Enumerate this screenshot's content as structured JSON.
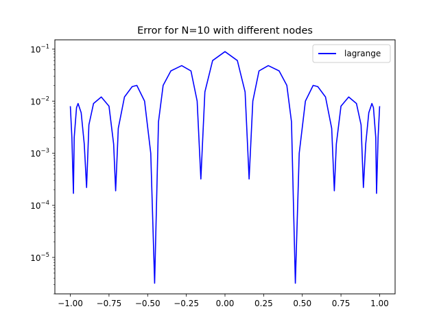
{
  "chart_data": {
    "type": "line",
    "title": "Error for N=10 with different nodes",
    "xlabel": "",
    "ylabel": "",
    "xlim": [
      -1.1,
      1.1
    ],
    "ylim": [
      2e-06,
      0.15
    ],
    "yscale": "log",
    "grid": false,
    "legend_position": "top-right",
    "x_ticks": [
      -1.0,
      -0.75,
      -0.5,
      -0.25,
      0.0,
      0.25,
      0.5,
      0.75,
      1.0
    ],
    "x_tick_labels": [
      "−1.00",
      "−0.75",
      "−0.50",
      "−0.25",
      "0.00",
      "0.25",
      "0.50",
      "0.75",
      "1.00"
    ],
    "y_ticks": [
      1e-05,
      0.0001,
      0.001,
      0.01,
      0.1
    ],
    "y_tick_labels": [
      {
        "base": "10",
        "exp": "−5"
      },
      {
        "base": "10",
        "exp": "−4"
      },
      {
        "base": "10",
        "exp": "−3"
      },
      {
        "base": "10",
        "exp": "−2"
      },
      {
        "base": "10",
        "exp": "−1"
      }
    ],
    "series": [
      {
        "name": "lagrange",
        "color": "#0000ff",
        "x": [
          -1.0,
          -0.99,
          -0.98,
          -0.975,
          -0.96,
          -0.95,
          -0.93,
          -0.91,
          -0.895,
          -0.88,
          -0.85,
          -0.8,
          -0.75,
          -0.72,
          -0.707,
          -0.69,
          -0.65,
          -0.6,
          -0.57,
          -0.52,
          -0.48,
          -0.455,
          -0.43,
          -0.4,
          -0.35,
          -0.28,
          -0.22,
          -0.18,
          -0.156,
          -0.13,
          -0.08,
          0.0,
          0.08,
          0.13,
          0.156,
          0.18,
          0.22,
          0.28,
          0.35,
          0.4,
          0.43,
          0.455,
          0.48,
          0.52,
          0.57,
          0.6,
          0.65,
          0.69,
          0.707,
          0.72,
          0.75,
          0.8,
          0.85,
          0.88,
          0.895,
          0.91,
          0.93,
          0.95,
          0.96,
          0.975,
          0.98,
          0.99,
          1.0
        ],
        "y": [
          0.008,
          0.002,
          0.00017,
          0.002,
          0.0075,
          0.009,
          0.006,
          0.0015,
          0.00022,
          0.0035,
          0.009,
          0.012,
          0.008,
          0.0015,
          0.00019,
          0.003,
          0.012,
          0.019,
          0.02,
          0.01,
          0.001,
          3.2e-06,
          0.004,
          0.02,
          0.038,
          0.048,
          0.038,
          0.01,
          0.00032,
          0.015,
          0.06,
          0.089,
          0.06,
          0.015,
          0.00032,
          0.01,
          0.038,
          0.048,
          0.038,
          0.02,
          0.004,
          3.2e-06,
          0.001,
          0.01,
          0.02,
          0.019,
          0.012,
          0.003,
          0.00019,
          0.0015,
          0.008,
          0.012,
          0.009,
          0.0035,
          0.00022,
          0.0015,
          0.006,
          0.009,
          0.0075,
          0.002,
          0.00017,
          0.002,
          0.008
        ]
      }
    ]
  }
}
